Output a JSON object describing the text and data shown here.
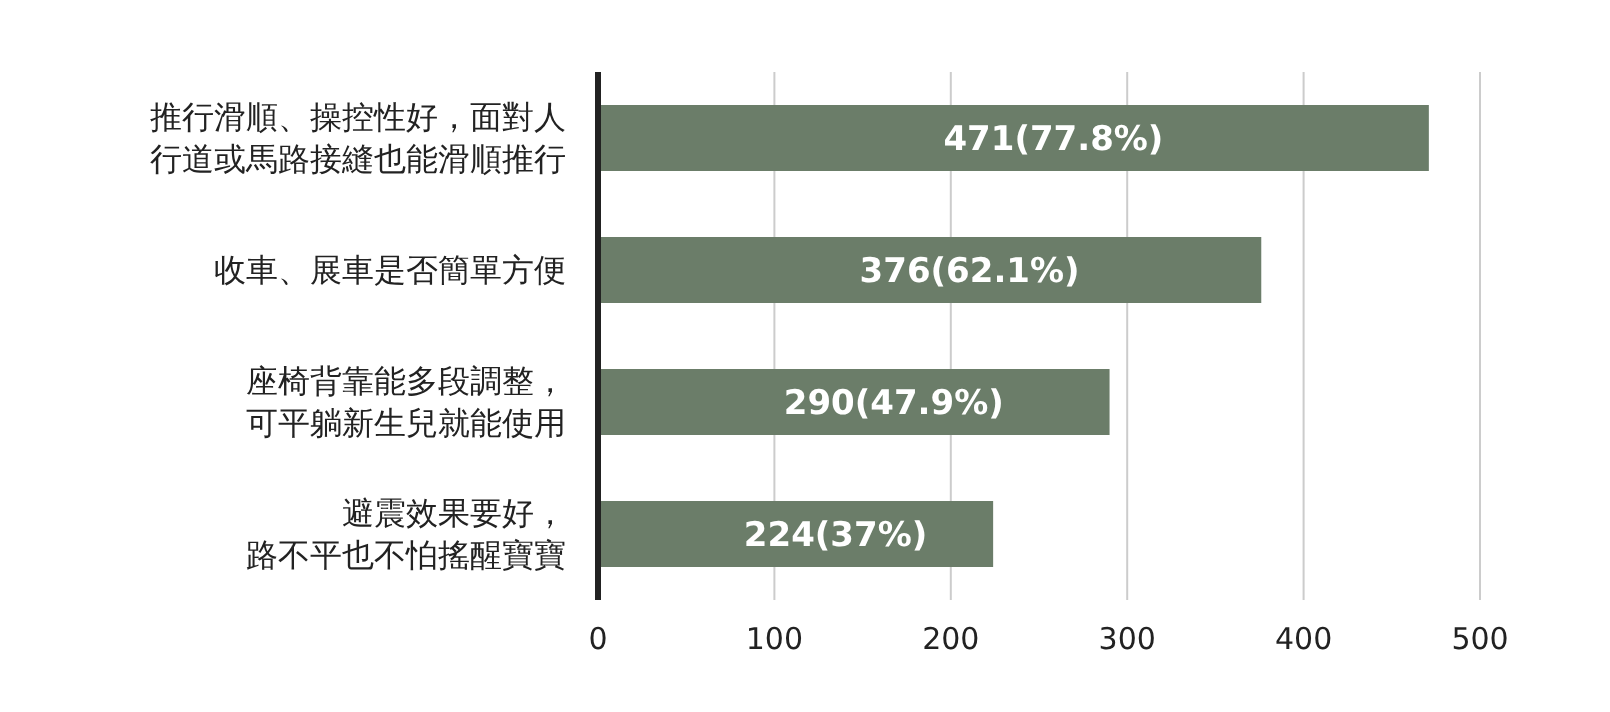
{
  "chart_data": {
    "type": "bar",
    "orientation": "horizontal",
    "categories": [
      "推行滑順、操控性好，面對人行道或馬路接縫也能滑順推行",
      "收車、展車是否簡單方便",
      "座椅背靠能多段調整，可平躺新生兒就能使用",
      "避震效果要好，路不平也不怕搖醒寶寶"
    ],
    "values": [
      471,
      376,
      290,
      224
    ],
    "value_labels": [
      "471(77.8%)",
      "376(62.1%)",
      "290(47.9%)",
      "224(37%)"
    ],
    "color": "#6b7d69",
    "xlim": [
      0,
      500
    ],
    "xticks": [
      0,
      100,
      200,
      300,
      400,
      500
    ],
    "grid": "x"
  }
}
